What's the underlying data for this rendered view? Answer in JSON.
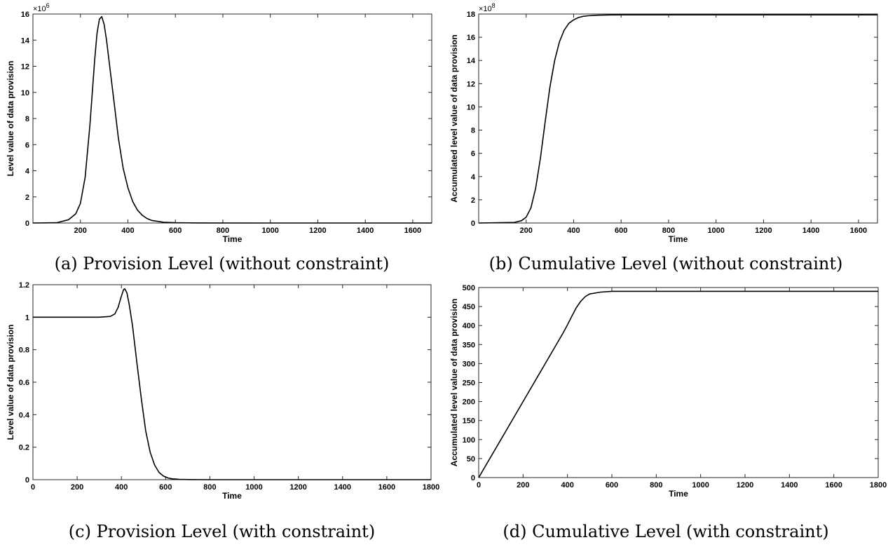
{
  "chart_data": [
    {
      "type": "line",
      "caption": "(a) Provision Level (without constraint)",
      "xlabel": "Time",
      "ylabel": "Level value of data provision",
      "exponent_label": "×10",
      "exponent_power": "6",
      "xlim": [
        0,
        1680
      ],
      "ylim": [
        0,
        16
      ],
      "xticks": [
        200,
        400,
        600,
        800,
        1000,
        1200,
        1400,
        1600
      ],
      "yticks": [
        0,
        2,
        4,
        6,
        8,
        10,
        12,
        14,
        16
      ],
      "series": [
        {
          "x": [
            0,
            100,
            150,
            180,
            200,
            220,
            240,
            260,
            270,
            280,
            290,
            300,
            310,
            320,
            340,
            360,
            380,
            400,
            420,
            440,
            460,
            480,
            500,
            550,
            600,
            700,
            1000,
            1400,
            1680
          ],
          "y": [
            0,
            0.02,
            0.25,
            0.7,
            1.5,
            3.5,
            7.5,
            12.5,
            14.5,
            15.6,
            15.8,
            15.2,
            14.0,
            12.5,
            9.5,
            6.5,
            4.2,
            2.7,
            1.65,
            1.0,
            0.6,
            0.35,
            0.2,
            0.06,
            0.02,
            0.005,
            0,
            0,
            0
          ]
        }
      ]
    },
    {
      "type": "line",
      "caption": "(b) Cumulative Level (without constraint)",
      "xlabel": "Time",
      "ylabel": "Accumulated level value of data provision",
      "exponent_label": "×10",
      "exponent_power": "8",
      "xlim": [
        0,
        1680
      ],
      "ylim": [
        0,
        18
      ],
      "xticks": [
        200,
        400,
        600,
        800,
        1000,
        1200,
        1400,
        1600
      ],
      "yticks": [
        0,
        2,
        4,
        6,
        8,
        10,
        12,
        14,
        16,
        18
      ],
      "series": [
        {
          "x": [
            0,
            150,
            180,
            200,
            220,
            240,
            260,
            280,
            300,
            320,
            340,
            360,
            380,
            400,
            420,
            440,
            460,
            500,
            550,
            600,
            800,
            1200,
            1680
          ],
          "y": [
            0,
            0.05,
            0.2,
            0.5,
            1.3,
            3.0,
            5.6,
            8.7,
            11.7,
            14.0,
            15.6,
            16.6,
            17.2,
            17.5,
            17.7,
            17.8,
            17.85,
            17.9,
            17.92,
            17.93,
            17.93,
            17.93,
            17.93
          ]
        }
      ]
    },
    {
      "type": "line",
      "caption": "(c) Provision Level (with constraint)",
      "xlabel": "Time",
      "ylabel": "Level value of data provision",
      "xlim": [
        0,
        1800
      ],
      "ylim": [
        0,
        1.2
      ],
      "xticks": [
        0,
        200,
        400,
        600,
        800,
        1000,
        1200,
        1400,
        1600,
        1800
      ],
      "yticks": [
        0,
        0.2,
        0.4,
        0.6,
        0.8,
        1,
        1.2
      ],
      "series": [
        {
          "x": [
            0,
            300,
            350,
            370,
            385,
            400,
            410,
            415,
            425,
            435,
            450,
            470,
            490,
            510,
            530,
            550,
            570,
            590,
            610,
            630,
            660,
            700,
            800,
            1000,
            1800
          ],
          "y": [
            1,
            1,
            1.005,
            1.02,
            1.06,
            1.13,
            1.17,
            1.175,
            1.15,
            1.08,
            0.95,
            0.72,
            0.5,
            0.3,
            0.17,
            0.09,
            0.045,
            0.022,
            0.011,
            0.005,
            0.002,
            0.001,
            0,
            0,
            0
          ]
        }
      ]
    },
    {
      "type": "line",
      "caption": "(d) Cumulative Level (with constraint)",
      "xlabel": "Time",
      "ylabel": "Accumulated level value of data provision",
      "xlim": [
        0,
        1800
      ],
      "ylim": [
        0,
        500
      ],
      "xticks": [
        0,
        200,
        400,
        600,
        800,
        1000,
        1200,
        1400,
        1600,
        1800
      ],
      "yticks": [
        0,
        50,
        100,
        150,
        200,
        250,
        300,
        350,
        400,
        450,
        500
      ],
      "series": [
        {
          "x": [
            0,
            100,
            200,
            300,
            380,
            400,
            420,
            440,
            460,
            480,
            500,
            550,
            600,
            700,
            1000,
            1800
          ],
          "y": [
            0,
            100,
            200,
            300,
            380,
            402,
            425,
            447,
            464,
            476,
            483,
            488,
            490,
            490,
            490,
            490
          ]
        }
      ]
    }
  ]
}
